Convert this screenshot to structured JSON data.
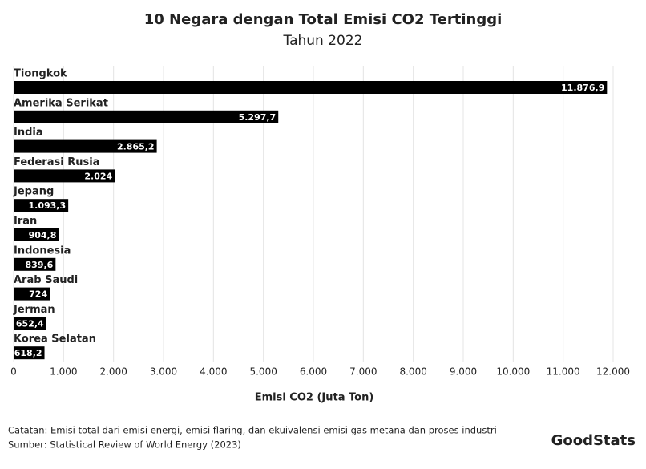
{
  "chart_data": {
    "type": "bar",
    "orientation": "horizontal",
    "title": "10 Negara dengan Total Emisi CO2 Tertinggi",
    "subtitle": "Tahun 2022",
    "categories": [
      "Tiongkok",
      "Amerika Serikat",
      "India",
      "Federasi Rusia",
      "Jepang",
      "Iran",
      "Indonesia",
      "Arab Saudi",
      "Jerman",
      "Korea Selatan"
    ],
    "values": [
      11876.9,
      5297.7,
      2865.2,
      2024,
      1093.3,
      904.8,
      839.6,
      724,
      652.4,
      618.2
    ],
    "value_labels": [
      "11.876,9",
      "5.297,7",
      "2.865,2",
      "2.024",
      "1.093,3",
      "904,8",
      "839,6",
      "724",
      "652,4",
      "618,2"
    ],
    "color": "#000000",
    "xlim": [
      0,
      12000
    ],
    "xticks": [
      0,
      {
        "value": 1000,
        "label": "1.000"
      },
      {
        "value": 2000,
        "label": "2.000"
      },
      {
        "value": 3000,
        "label": "3.000"
      },
      {
        "value": 4000,
        "label": "4.000"
      },
      {
        "value": 5000,
        "label": "5.000"
      },
      {
        "value": 6000,
        "label": "6.000"
      },
      {
        "value": 7000,
        "label": "7.000"
      },
      {
        "value": 8000,
        "label": "8.000"
      },
      {
        "value": 9000,
        "label": "9.000"
      },
      {
        "value": 10000,
        "label": "10.000"
      },
      {
        "value": 11000,
        "label": "11.000"
      },
      {
        "value": 12000,
        "label": "12.000"
      }
    ],
    "xlabel": "Emisi CO2 (Juta Ton)",
    "grid": true
  },
  "footer": {
    "note": "Catatan: Emisi total dari emisi energi, emisi flaring, dan ekuivalensi emisi gas metana dan proses industri",
    "source": "Sumber: Statistical Review of World Energy (2023)",
    "logo": "GoodStats"
  }
}
